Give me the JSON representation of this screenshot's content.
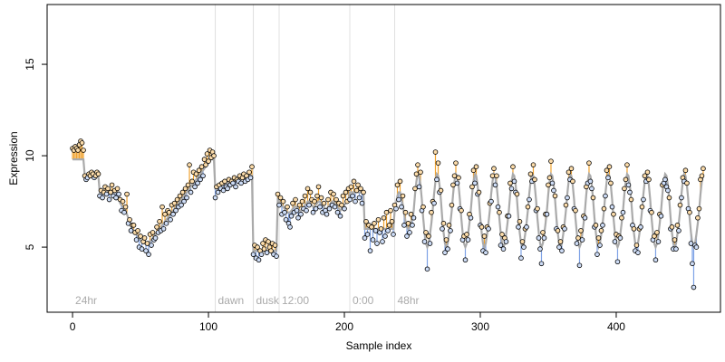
{
  "chart_data": {
    "type": "scatter",
    "xlabel": "Sample index",
    "ylabel": "Expression",
    "xlim": [
      -18.7,
      476.7
    ],
    "ylim": [
      1.44,
      18.27
    ],
    "xticks": [
      0,
      100,
      200,
      300,
      400
    ],
    "yticks": [
      5,
      10,
      15
    ],
    "grid": false,
    "above_color": "#f0a22e",
    "below_color": "#7ea2e6",
    "fit_color": "#aaaaaa",
    "point_above_fill": "#fcdcaa",
    "point_below_fill": "#cddcf6",
    "vlines": [
      105,
      133,
      152,
      204,
      237
    ],
    "annotations": [
      {
        "x": 0,
        "label": "24hr"
      },
      {
        "x": 105,
        "label": "dawn"
      },
      {
        "x": 133,
        "label": "dusk"
      },
      {
        "x": 152,
        "label": "12:00"
      },
      {
        "x": 204,
        "label": "0:00"
      },
      {
        "x": 237,
        "label": "48hr"
      }
    ],
    "values": [
      10.4,
      10.3,
      10.5,
      10.4,
      10.3,
      10.6,
      10.8,
      10.7,
      10.3,
      8.9,
      8.7,
      8.8,
      9.0,
      8.9,
      9.1,
      9.0,
      8.8,
      8.9,
      9.1,
      9.0,
      7.8,
      8.1,
      7.7,
      8.0,
      8.3,
      7.9,
      8.2,
      7.6,
      8.0,
      8.4,
      7.8,
      8.1,
      7.7,
      8.2,
      7.9,
      7.6,
      7.0,
      7.5,
      6.9,
      7.2,
      7.9,
      6.3,
      6.5,
      5.9,
      6.2,
      6.2,
      5.8,
      5.4,
      5.9,
      5.0,
      5.6,
      4.9,
      5.3,
      5.5,
      4.8,
      5.2,
      4.6,
      5.7,
      5.1,
      5.8,
      5.4,
      5.5,
      6.1,
      5.8,
      6.4,
      5.9,
      7.2,
      6.0,
      6.8,
      6.3,
      7.0,
      6.9,
      6.5,
      7.3,
      6.8,
      7.4,
      7.0,
      7.6,
      7.2,
      7.8,
      7.3,
      8.0,
      7.5,
      8.2,
      7.7,
      8.4,
      9.5,
      8.0,
      8.6,
      9.1,
      8.3,
      9.0,
      8.5,
      9.2,
      8.7,
      9.4,
      8.9,
      9.8,
      9.5,
      10.1,
      9.7,
      10.3,
      9.9,
      10.2,
      10.0,
      7.7,
      8.3,
      8.0,
      8.4,
      8.2,
      8.5,
      8.1,
      8.6,
      8.3,
      8.2,
      8.7,
      8.4,
      8.6,
      8.5,
      8.8,
      8.3,
      8.7,
      8.6,
      8.9,
      8.5,
      8.8,
      9.0,
      8.6,
      8.9,
      8.7,
      9.1,
      8.8,
      9.4,
      4.6,
      5.1,
      4.4,
      5.0,
      4.3,
      4.8,
      4.6,
      5.2,
      4.9,
      5.4,
      4.7,
      5.3,
      5.0,
      4.8,
      5.2,
      4.6,
      5.1,
      4.5,
      7.9,
      7.3,
      7.7,
      6.8,
      7.5,
      6.9,
      6.5,
      7.2,
      6.3,
      6.1,
      6.7,
      7.4,
      6.9,
      7.6,
      7.0,
      6.6,
      7.3,
      6.8,
      7.5,
      7.1,
      7.8,
      7.0,
      8.2,
      7.3,
      8.0,
      7.6,
      6.9,
      7.5,
      7.1,
      7.8,
      8.3,
      7.2,
      7.7,
      6.9,
      7.4,
      7.0,
      6.8,
      7.6,
      7.1,
      8.0,
      7.3,
      7.9,
      7.2,
      7.6,
      6.9,
      7.4,
      6.7,
      7.3,
      7.8,
      7.1,
      8.0,
      7.5,
      8.2,
      7.6,
      8.3,
      7.8,
      8.6,
      7.5,
      8.1,
      8.4,
      7.7,
      8.2,
      7.4,
      8.0,
      5.5,
      6.4,
      5.7,
      6.2,
      4.8,
      6.1,
      5.4,
      6.3,
      5.9,
      5.2,
      6.5,
      5.8,
      6.0,
      5.3,
      6.6,
      5.6,
      6.9,
      5.9,
      6.2,
      7.0,
      6.4,
      5.7,
      7.3,
      7.1,
      8.4,
      7.6,
      8.6,
      7.2,
      7.8,
      6.2,
      6.9,
      5.6,
      6.3,
      5.8,
      6.8,
      6.2,
      6.6,
      8.2,
      9.0,
      9.5,
      8.3,
      9.1,
      7.0,
      7.2,
      5.3,
      5.8,
      3.8,
      5.6,
      5.2,
      6.9,
      7.5,
      7.4,
      10.2,
      8.7,
      9.6,
      8.0,
      8.1,
      6.0,
      6.3,
      4.7,
      5.4,
      4.9,
      6.2,
      5.9,
      7.3,
      8.4,
      8.9,
      9.6,
      8.5,
      8.8,
      7.1,
      7.0,
      5.4,
      5.6,
      4.3,
      5.7,
      5.4,
      6.8,
      6.6,
      8.3,
      9.2,
      8.5,
      9.4,
      7.9,
      8.0,
      6.2,
      6.1,
      4.8,
      5.6,
      4.7,
      6.1,
      6.0,
      7.4,
      7.5,
      8.9,
      9.3,
      8.4,
      8.9,
      7.2,
      6.9,
      5.1,
      5.7,
      4.9,
      5.5,
      5.3,
      6.7,
      6.7,
      8.5,
      8.2,
      9.4,
      8.6,
      8.0,
      7.9,
      6.1,
      6.4,
      4.4,
      5.3,
      5.0,
      6.0,
      6.1,
      7.2,
      7.6,
      9.0,
      8.6,
      9.5,
      8.7,
      7.0,
      7.1,
      5.5,
      4.9,
      4.1,
      5.8,
      5.5,
      6.8,
      6.8,
      8.4,
      8.8,
      9.7,
      8.5,
      8.1,
      7.8,
      6.0,
      5.9,
      5.0,
      5.3,
      4.8,
      6.1,
      6.0,
      7.3,
      7.7,
      9.1,
      8.7,
      9.3,
      8.6,
      7.1,
      7.0,
      5.2,
      5.5,
      4.0,
      5.9,
      5.4,
      6.7,
      6.6,
      8.3,
      8.5,
      9.6,
      8.6,
      8.2,
      7.7,
      6.1,
      6.2,
      4.6,
      5.5,
      5.1,
      5.9,
      6.2,
      7.1,
      7.8,
      9.2,
      8.8,
      9.4,
      8.5,
      7.2,
      6.8,
      5.3,
      5.7,
      4.2,
      5.6,
      5.5,
      6.6,
      6.9,
      8.2,
      8.7,
      9.5,
      8.4,
      8.0,
      7.6,
      6.2,
      6.0,
      4.8,
      5.1,
      4.7,
      6.0,
      6.1,
      7.2,
      7.6,
      8.9,
      8.6,
      9.1,
      8.7,
      7.0,
      6.9,
      5.4,
      5.6,
      4.3,
      5.8,
      5.3,
      6.8,
      6.7,
      8.4,
      8.5,
      8.7,
      8.3,
      8.1,
      7.7,
      6.0,
      6.1,
      4.9,
      5.4,
      4.9,
      6.2,
      5.9,
      7.3,
      7.7,
      8.8,
      8.6,
      9.2,
      8.5,
      7.1,
      6.9,
      5.2,
      4.1,
      2.8,
      5.1,
      5.0,
      6.6,
      7.1,
      8.7,
      8.9,
      9.3
    ],
    "fit": [
      9.8,
      9.8,
      9.8,
      9.8,
      9.8,
      9.8,
      9.8,
      9.8,
      9.8,
      8.9,
      8.9,
      8.9,
      8.9,
      8.9,
      8.9,
      8.9,
      8.9,
      8.9,
      8.9,
      8.9,
      8.0,
      8.0,
      8.0,
      8.0,
      8.0,
      8.0,
      8.0,
      8.0,
      8.0,
      8.0,
      8.0,
      8.0,
      8.0,
      8.0,
      8.0,
      7.4,
      7.3,
      7.2,
      7.1,
      7.0,
      6.8,
      6.6,
      6.4,
      6.2,
      6.0,
      5.9,
      5.8,
      5.7,
      5.6,
      5.5,
      5.4,
      5.3,
      5.3,
      5.2,
      5.2,
      5.2,
      5.3,
      5.3,
      5.4,
      5.5,
      5.6,
      5.7,
      5.8,
      5.9,
      6.0,
      6.1,
      6.2,
      6.3,
      6.4,
      6.5,
      6.6,
      6.7,
      6.8,
      6.9,
      7.0,
      7.1,
      7.2,
      7.3,
      7.4,
      7.5,
      7.6,
      7.7,
      7.8,
      7.9,
      8.0,
      8.1,
      8.2,
      8.3,
      8.4,
      8.5,
      8.6,
      8.7,
      8.8,
      8.9,
      9.0,
      9.1,
      9.2,
      9.3,
      9.4,
      9.5,
      9.6,
      9.8,
      9.8,
      9.8,
      9.8,
      8.2,
      8.2,
      8.3,
      8.3,
      8.3,
      8.4,
      8.4,
      8.4,
      8.5,
      8.5,
      8.5,
      8.5,
      8.6,
      8.6,
      8.6,
      8.6,
      8.7,
      8.7,
      8.7,
      8.7,
      8.8,
      8.8,
      8.8,
      8.8,
      8.9,
      8.9,
      8.9,
      8.9,
      4.8,
      4.8,
      4.8,
      4.8,
      4.8,
      4.8,
      4.8,
      4.8,
      4.8,
      4.8,
      4.8,
      4.8,
      4.8,
      4.8,
      4.8,
      4.8,
      4.8,
      4.8,
      7.6,
      7.5,
      7.4,
      7.3,
      7.2,
      7.1,
      7.0,
      6.9,
      6.9,
      6.9,
      7.0,
      7.1,
      7.2,
      7.2,
      7.2,
      7.1,
      7.0,
      7.0,
      7.1,
      7.2,
      7.3,
      7.4,
      7.5,
      7.5,
      7.4,
      7.3,
      7.2,
      7.2,
      7.3,
      7.4,
      7.5,
      7.5,
      7.4,
      7.3,
      7.2,
      7.1,
      7.1,
      7.2,
      7.3,
      7.4,
      7.5,
      7.5,
      7.4,
      7.3,
      7.2,
      7.1,
      7.0,
      7.1,
      7.2,
      7.3,
      7.4,
      7.5,
      7.6,
      8.0,
      8.0,
      8.0,
      8.0,
      8.0,
      8.0,
      8.0,
      8.0,
      8.0,
      8.0,
      8.0,
      6.0,
      6.0,
      6.0,
      6.0,
      6.0,
      6.0,
      6.0,
      6.0,
      6.0,
      6.0,
      6.0,
      6.0,
      6.0,
      6.0,
      6.0,
      6.0,
      6.0,
      6.0,
      6.0,
      6.0,
      6.0,
      6.0,
      7.0,
      7.4,
      7.8,
      8.0,
      8.0,
      7.7,
      7.3,
      6.8,
      6.4,
      6.1,
      6.0,
      6.1,
      6.3,
      6.6,
      7.0,
      7.9,
      8.6,
      9.0,
      8.9,
      8.4,
      7.6,
      6.6,
      5.8,
      5.2,
      5.0,
      5.2,
      5.7,
      6.3,
      7.0,
      7.9,
      8.6,
      9.0,
      8.9,
      8.4,
      7.6,
      6.6,
      5.8,
      5.2,
      5.0,
      5.2,
      5.7,
      6.3,
      7.0,
      7.9,
      8.6,
      9.0,
      8.9,
      8.4,
      7.6,
      6.6,
      5.8,
      5.2,
      5.0,
      5.2,
      5.7,
      6.3,
      7.0,
      7.9,
      8.6,
      9.0,
      8.9,
      8.4,
      7.6,
      6.6,
      5.8,
      5.2,
      5.0,
      5.2,
      5.7,
      6.3,
      7.0,
      7.9,
      8.6,
      9.0,
      8.9,
      8.4,
      7.6,
      6.6,
      5.8,
      5.2,
      5.0,
      5.2,
      5.7,
      6.3,
      7.0,
      7.9,
      8.6,
      9.0,
      8.9,
      8.4,
      7.6,
      6.6,
      5.8,
      5.2,
      5.0,
      5.2,
      5.7,
      6.3,
      7.0,
      7.9,
      8.6,
      9.0,
      8.9,
      8.4,
      7.6,
      6.6,
      5.8,
      5.2,
      5.0,
      5.2,
      5.7,
      6.3,
      7.0,
      7.9,
      8.6,
      9.0,
      8.9,
      8.4,
      7.6,
      6.6,
      5.8,
      5.2,
      5.0,
      5.2,
      5.7,
      6.3,
      7.0,
      7.9,
      8.6,
      9.0,
      8.9,
      8.4,
      7.6,
      6.6,
      5.8,
      5.2,
      5.0,
      5.2,
      5.7,
      6.3,
      7.0,
      7.9,
      8.6,
      9.0,
      8.9,
      8.4,
      7.6,
      6.6,
      5.8,
      5.2,
      5.0,
      5.2,
      5.7,
      6.3,
      7.0,
      7.9,
      8.6,
      9.0,
      8.9,
      8.4,
      7.6,
      6.6,
      5.8,
      5.2,
      5.0,
      5.2,
      5.7,
      6.3,
      7.0,
      7.9,
      8.6,
      9.0,
      8.9,
      8.4,
      7.6,
      6.6,
      5.8,
      5.2,
      5.0,
      5.2,
      5.7,
      6.3,
      7.0,
      7.9,
      8.6,
      9.0,
      8.9,
      8.4,
      7.6,
      6.6,
      5.8,
      5.2,
      5.0,
      5.2,
      5.7,
      6.3,
      7.0,
      7.9,
      8.6,
      9.0,
      8.9,
      8.4,
      7.6,
      6.6,
      5.8,
      5.2,
      5.0,
      5.2,
      5.7,
      6.3,
      7.0,
      7.9,
      8.6,
      9.0,
      8.9,
      8.4,
      7.6,
      6.6,
      5.8,
      5.2,
      5.0,
      5.2,
      5.7,
      6.3,
      7.0,
      7.9,
      8.6,
      9.0
    ]
  }
}
